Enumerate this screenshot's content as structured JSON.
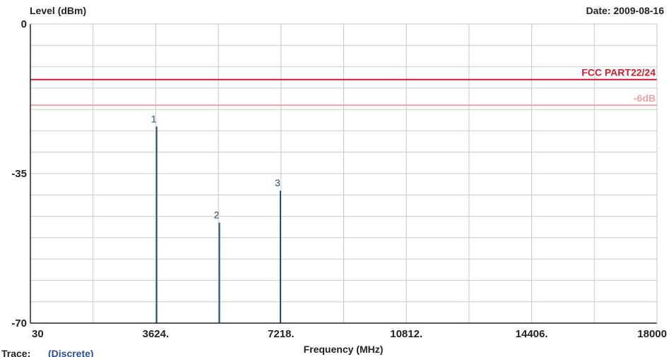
{
  "chart_data": {
    "type": "bar",
    "title": "",
    "ylabel": "Level (dBm)",
    "xlabel": "Frequency (MHz)",
    "date_label": "Date: 2009-08-16",
    "trace_label": "Trace:",
    "trace_value": "(Discrete)",
    "xlim": [
      30,
      18000
    ],
    "ylim": [
      -70,
      0
    ],
    "grid": true,
    "x_ticks": [
      {
        "value": 30,
        "label": "30"
      },
      {
        "value": 3624,
        "label": "3624."
      },
      {
        "value": 7218,
        "label": "7218."
      },
      {
        "value": 10812,
        "label": "10812."
      },
      {
        "value": 14406,
        "label": "14406."
      },
      {
        "value": 18000,
        "label": "18000"
      }
    ],
    "y_ticks": [
      {
        "value": 0,
        "label": "0"
      },
      {
        "value": -35,
        "label": "-35"
      },
      {
        "value": -70,
        "label": "-70"
      }
    ],
    "limit_lines": [
      {
        "label": "FCC PART22/24",
        "value": -13,
        "color": "#cc1f2e"
      },
      {
        "label": "-6dB",
        "value": -19,
        "color": "#f0a2aa"
      }
    ],
    "markers": [
      {
        "label": "1",
        "x": 3650,
        "y": -24
      },
      {
        "label": "2",
        "x": 5450,
        "y": -46.5
      },
      {
        "label": "3",
        "x": 7200,
        "y": -39
      }
    ],
    "colors": {
      "marker": "#1f4e6e",
      "grid": "#c8c8c8",
      "axis": "#222222",
      "trace_value": "#2a4f9a"
    }
  }
}
